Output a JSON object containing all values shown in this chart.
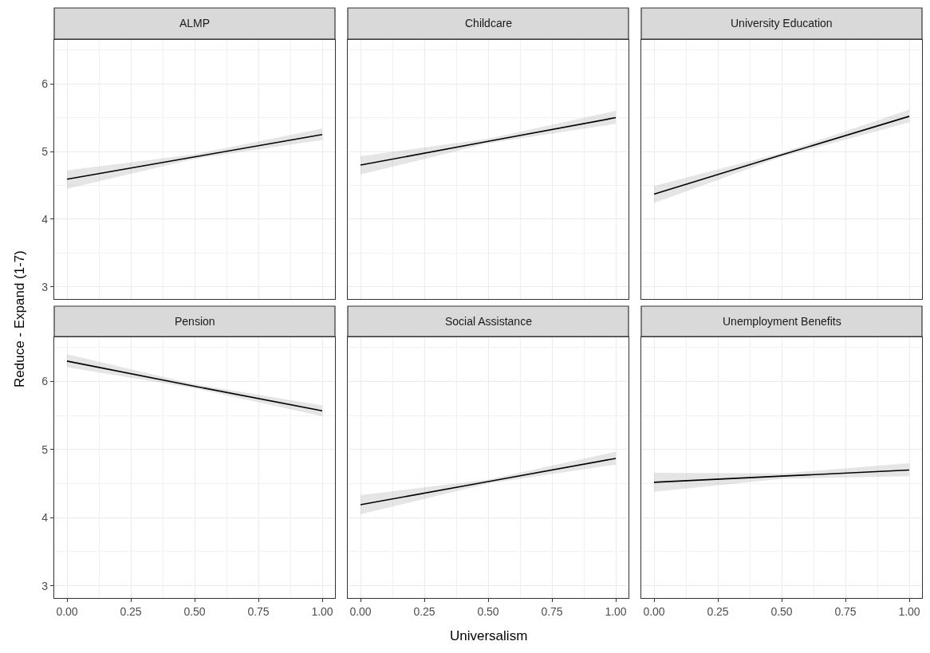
{
  "chart_data": [
    {
      "type": "line",
      "title": "ALMP",
      "ylabel": "Reduce - Expand (1-7)",
      "x": [
        0,
        0.5,
        1
      ],
      "xlim": [
        -0.05,
        1.05
      ],
      "xticks": [
        0,
        0.25,
        0.5,
        0.75,
        1
      ],
      "ylim": [
        2.82,
        6.65
      ],
      "yticks": [
        3,
        4,
        5,
        6
      ],
      "grid": true,
      "tick_labels": "y",
      "series": [
        {
          "color": "#000000",
          "values": [
            4.59,
            4.92,
            5.25
          ],
          "lower": [
            4.45,
            4.89,
            5.17
          ],
          "upper": [
            4.72,
            4.96,
            5.34
          ]
        }
      ]
    },
    {
      "type": "line",
      "title": "Childcare",
      "x": [
        0,
        0.5,
        1
      ],
      "xlim": [
        -0.05,
        1.05
      ],
      "xticks": [
        0,
        0.25,
        0.5,
        0.75,
        1
      ],
      "ylim": [
        2.82,
        6.65
      ],
      "yticks": [
        3,
        4,
        5,
        6
      ],
      "grid": true,
      "tick_labels": false,
      "series": [
        {
          "color": "#000000",
          "values": [
            4.8,
            5.15,
            5.5
          ],
          "lower": [
            4.66,
            5.12,
            5.41
          ],
          "upper": [
            4.93,
            5.19,
            5.6
          ]
        }
      ]
    },
    {
      "type": "line",
      "title": "University Education",
      "x": [
        0,
        0.5,
        1
      ],
      "xlim": [
        -0.05,
        1.05
      ],
      "xticks": [
        0,
        0.25,
        0.5,
        0.75,
        1
      ],
      "ylim": [
        2.82,
        6.65
      ],
      "yticks": [
        3,
        4,
        5,
        6
      ],
      "grid": true,
      "tick_labels": false,
      "series": [
        {
          "color": "#000000",
          "values": [
            4.37,
            4.95,
            5.52
          ],
          "lower": [
            4.24,
            4.92,
            5.43
          ],
          "upper": [
            4.49,
            4.98,
            5.62
          ]
        }
      ]
    },
    {
      "type": "line",
      "title": "Pension",
      "x": [
        0,
        0.5,
        1
      ],
      "xlim": [
        -0.05,
        1.05
      ],
      "xticks": [
        {
          "value": 0,
          "label": "0.00"
        },
        {
          "value": 0.25,
          "label": "0.25"
        },
        {
          "value": 0.5,
          "label": "0.50"
        },
        {
          "value": 0.75,
          "label": "0.75"
        },
        {
          "value": 1,
          "label": "1.00"
        }
      ],
      "ylim": [
        2.82,
        6.65
      ],
      "yticks": [
        3,
        4,
        5,
        6
      ],
      "grid": true,
      "series": [
        {
          "color": "#000000",
          "values": [
            6.3,
            5.93,
            5.57
          ],
          "lower": [
            6.21,
            5.9,
            5.49
          ],
          "upper": [
            6.4,
            5.96,
            5.65
          ]
        }
      ]
    },
    {
      "type": "line",
      "title": "Social Assistance",
      "xlabel": "Universalism",
      "x": [
        0,
        0.5,
        1
      ],
      "xlim": [
        -0.05,
        1.05
      ],
      "xticks": [
        {
          "value": 0,
          "label": "0.00"
        },
        {
          "value": 0.25,
          "label": "0.25"
        },
        {
          "value": 0.5,
          "label": "0.50"
        },
        {
          "value": 0.75,
          "label": "0.75"
        },
        {
          "value": 1,
          "label": "1.00"
        }
      ],
      "ylim": [
        2.82,
        6.65
      ],
      "yticks": [
        3,
        4,
        5,
        6
      ],
      "grid": true,
      "tick_labels": "x",
      "series": [
        {
          "color": "#000000",
          "values": [
            4.19,
            4.53,
            4.87
          ],
          "lower": [
            4.05,
            4.5,
            4.78
          ],
          "upper": [
            4.33,
            4.56,
            4.97
          ]
        }
      ]
    },
    {
      "type": "line",
      "title": "Unemployment Benefits",
      "x": [
        0,
        0.5,
        1
      ],
      "xlim": [
        -0.05,
        1.05
      ],
      "xticks": [
        {
          "value": 0,
          "label": "0.00"
        },
        {
          "value": 0.25,
          "label": "0.25"
        },
        {
          "value": 0.5,
          "label": "0.50"
        },
        {
          "value": 0.75,
          "label": "0.75"
        },
        {
          "value": 1,
          "label": "1.00"
        }
      ],
      "ylim": [
        2.82,
        6.65
      ],
      "yticks": [
        3,
        4,
        5,
        6
      ],
      "grid": true,
      "tick_labels": "x",
      "series": [
        {
          "color": "#000000",
          "values": [
            4.52,
            4.61,
            4.7
          ],
          "lower": [
            4.38,
            4.57,
            4.61
          ],
          "upper": [
            4.66,
            4.65,
            4.8
          ]
        }
      ]
    }
  ]
}
